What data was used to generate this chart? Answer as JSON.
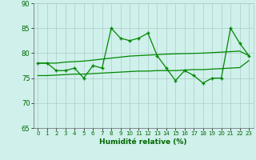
{
  "xlabel": "Humidité relative (%)",
  "bg_color": "#cff0eb",
  "grid_color": "#aaccc7",
  "line_color": "#008800",
  "ylim": [
    65,
    90
  ],
  "xlim": [
    -0.5,
    23.5
  ],
  "yticks": [
    65,
    70,
    75,
    80,
    85,
    90
  ],
  "xticks": [
    0,
    1,
    2,
    3,
    4,
    5,
    6,
    7,
    8,
    9,
    10,
    11,
    12,
    13,
    14,
    15,
    16,
    17,
    18,
    19,
    20,
    21,
    22,
    23
  ],
  "series1": [
    78,
    78,
    76.5,
    76.5,
    77,
    75,
    77.5,
    77,
    85,
    83,
    82.5,
    83,
    84,
    79.5,
    77,
    74.5,
    76.5,
    75.5,
    74,
    75,
    75,
    85,
    82,
    79.5
  ],
  "series2": [
    78,
    78,
    78,
    78.2,
    78.3,
    78.4,
    78.6,
    78.8,
    79.0,
    79.2,
    79.4,
    79.5,
    79.6,
    79.7,
    79.8,
    79.85,
    79.9,
    79.95,
    80.0,
    80.1,
    80.2,
    80.3,
    80.4,
    79.5
  ],
  "series3": [
    75.5,
    75.5,
    75.6,
    75.7,
    75.8,
    75.8,
    75.9,
    76.0,
    76.1,
    76.2,
    76.3,
    76.4,
    76.4,
    76.5,
    76.5,
    76.5,
    76.6,
    76.7,
    76.7,
    76.8,
    76.9,
    77.0,
    77.1,
    78.5
  ],
  "font_color": "#006600"
}
